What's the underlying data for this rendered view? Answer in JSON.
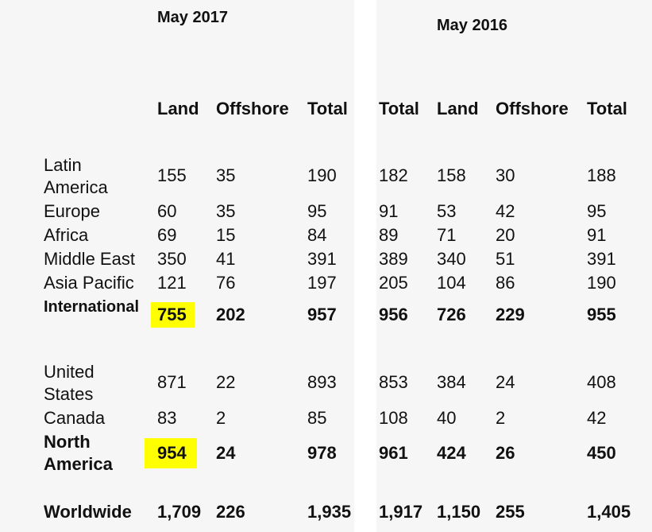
{
  "header": {
    "may_2017": "May 2017",
    "may_2016": "May 2016"
  },
  "columns": [
    "Land",
    "Offshore",
    "Total",
    "Total",
    "Land",
    "Offshore",
    "Total"
  ],
  "rows": {
    "latin_america": {
      "label_line1": "Latin",
      "label_line2": "America",
      "values": [
        "155",
        "35",
        "190",
        "182",
        "158",
        "30",
        "188"
      ]
    },
    "europe": {
      "label": "Europe",
      "values": [
        "60",
        "35",
        "95",
        "91",
        "53",
        "42",
        "95"
      ]
    },
    "africa": {
      "label": "Africa",
      "values": [
        "69",
        "15",
        "84",
        "89",
        "71",
        "20",
        "91"
      ]
    },
    "middle_east": {
      "label": "Middle East",
      "values": [
        "350",
        "41",
        "391",
        "389",
        "340",
        "51",
        "391"
      ]
    },
    "asia_pacific": {
      "label": "Asia Pacific",
      "values": [
        "121",
        "76",
        "197",
        "205",
        "104",
        "86",
        "190"
      ]
    },
    "international": {
      "label": "International",
      "values": [
        "755",
        "202",
        "957",
        "956",
        "726",
        "229",
        "955"
      ]
    },
    "united_states": {
      "label_line1": "United",
      "label_line2": "States",
      "values": [
        "871",
        "22",
        "893",
        "853",
        "384",
        "24",
        "408"
      ]
    },
    "canada": {
      "label": "Canada",
      "values": [
        "83",
        "2",
        "85",
        "108",
        "40",
        "2",
        "42"
      ]
    },
    "north_america": {
      "label_line1": "North",
      "label_line2": "America",
      "values": [
        "954",
        "24",
        "978",
        "961",
        "424",
        "26",
        "450"
      ]
    },
    "worldwide": {
      "label": "Worldwide",
      "values": [
        "1,709",
        "226",
        "1,935",
        "1,917",
        "1,150",
        "255",
        "1,405"
      ]
    }
  },
  "highlight_color": "#ffff00"
}
